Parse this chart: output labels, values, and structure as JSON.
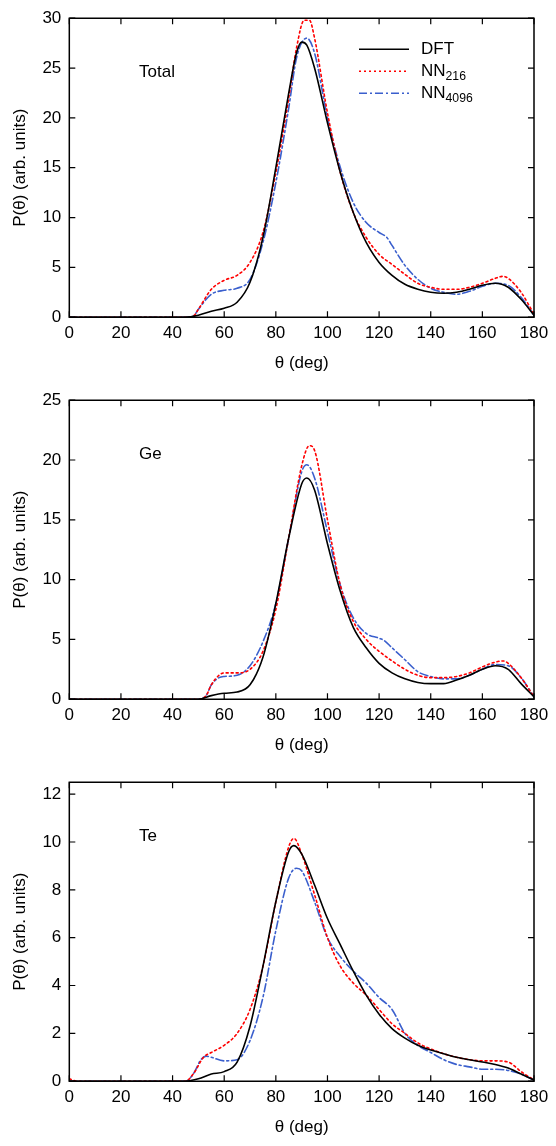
{
  "chart_data": [
    {
      "type": "line",
      "xlabel": "θ (deg)",
      "ylabel": "P(θ) (arb. units)",
      "annotations": [
        "Total"
      ],
      "xlim": [
        0,
        180
      ],
      "xticks": [
        0,
        20,
        40,
        60,
        80,
        100,
        120,
        140,
        160,
        180
      ],
      "ylim": [
        0,
        30
      ],
      "yticks": [
        0,
        5,
        10,
        15,
        20,
        25,
        30
      ],
      "grid": false,
      "legend": "top right",
      "marker": "none",
      "series": [
        {
          "name": "DFT",
          "color": "#000000",
          "line_style": "solid",
          "x": [
            0,
            45,
            50,
            55,
            60,
            65,
            70,
            75,
            80,
            85,
            88,
            90,
            92,
            95,
            100,
            105,
            110,
            115,
            120,
            125,
            130,
            135,
            140,
            145,
            150,
            155,
            160,
            165,
            170,
            175,
            180
          ],
          "values": [
            0,
            0,
            0.2,
            0.6,
            0.9,
            1.5,
            3.5,
            8,
            15,
            22.5,
            26.5,
            27.6,
            27.3,
            25,
            19.5,
            14.5,
            10.5,
            7.5,
            5.5,
            4.2,
            3.3,
            2.8,
            2.5,
            2.4,
            2.5,
            2.8,
            3.2,
            3.4,
            3,
            1.8,
            0.2
          ]
        },
        {
          "name": "NN$_{216}$",
          "color": "#ff0000",
          "line_style": "dotted",
          "x": [
            0,
            45,
            48,
            50,
            55,
            60,
            65,
            70,
            75,
            80,
            85,
            88,
            91,
            93,
            95,
            100,
            105,
            110,
            115,
            120,
            125,
            130,
            135,
            140,
            145,
            150,
            155,
            160,
            165,
            168,
            170,
            175,
            180
          ],
          "values": [
            0,
            0,
            0.1,
            0.8,
            2.8,
            3.7,
            4.2,
            5.5,
            8.5,
            14.5,
            22,
            27,
            29.8,
            29.8,
            28,
            20.5,
            14.5,
            10.5,
            8,
            6.3,
            5.3,
            4.3,
            3.4,
            3,
            2.8,
            2.8,
            3,
            3.4,
            3.9,
            4.1,
            3.9,
            2.5,
            0.3
          ]
        },
        {
          "name": "NN$_{4096}$",
          "color": "#3a5fcd",
          "line_style": "dashed",
          "x": [
            0,
            45,
            48,
            50,
            55,
            60,
            65,
            70,
            75,
            80,
            85,
            88,
            92,
            95,
            100,
            105,
            110,
            115,
            120,
            123,
            125,
            130,
            135,
            140,
            145,
            150,
            155,
            160,
            165,
            170,
            175,
            180
          ],
          "values": [
            0,
            0,
            0.1,
            0.8,
            2.3,
            2.7,
            2.9,
            3.8,
            7.5,
            13.5,
            21,
            26,
            28,
            26.5,
            20,
            15,
            11.5,
            9.5,
            8.5,
            8,
            7.2,
            5.2,
            3.8,
            2.9,
            2.5,
            2.3,
            2.6,
            3.1,
            3.4,
            3.2,
            2,
            0.2
          ]
        }
      ]
    },
    {
      "type": "line",
      "xlabel": "θ (deg)",
      "ylabel": "P(θ) (arb. units)",
      "annotations": [
        "Ge"
      ],
      "xlim": [
        0,
        180
      ],
      "xticks": [
        0,
        20,
        40,
        60,
        80,
        100,
        120,
        140,
        160,
        180
      ],
      "ylim": [
        0,
        25
      ],
      "yticks": [
        0,
        5,
        10,
        15,
        20,
        25
      ],
      "grid": false,
      "legend": false,
      "marker": "none",
      "series": [
        {
          "color": "#000000",
          "line_style": "solid",
          "x": [
            0,
            50,
            55,
            60,
            65,
            70,
            75,
            80,
            85,
            90,
            92,
            95,
            100,
            105,
            110,
            115,
            120,
            125,
            130,
            135,
            140,
            145,
            150,
            155,
            160,
            165,
            170,
            175,
            180
          ],
          "values": [
            0,
            0,
            0.3,
            0.5,
            0.6,
            1.2,
            3.5,
            8,
            13.5,
            18,
            18.5,
            17.5,
            13,
            9,
            6,
            4.3,
            3,
            2.2,
            1.7,
            1.4,
            1.3,
            1.3,
            1.6,
            2,
            2.5,
            2.8,
            2.5,
            1.3,
            0.2
          ]
        },
        {
          "color": "#ff0000",
          "line_style": "dotted",
          "x": [
            0,
            50,
            53,
            55,
            58,
            60,
            65,
            70,
            75,
            80,
            85,
            90,
            93,
            95,
            100,
            105,
            110,
            115,
            120,
            125,
            130,
            135,
            140,
            145,
            150,
            155,
            160,
            165,
            168,
            170,
            175,
            180
          ],
          "values": [
            0,
            0,
            0.3,
            1.2,
            2,
            2.2,
            2.2,
            2.5,
            4,
            7.5,
            13.5,
            19.5,
            21.2,
            20.8,
            15,
            9.5,
            6.5,
            5,
            4,
            3.2,
            2.5,
            2,
            1.8,
            1.8,
            1.9,
            2.2,
            2.7,
            3.1,
            3.2,
            3,
            1.8,
            0.2
          ]
        },
        {
          "color": "#3a5fcd",
          "line_style": "dashed",
          "x": [
            0,
            50,
            53,
            55,
            58,
            60,
            65,
            70,
            75,
            80,
            85,
            90,
            92,
            95,
            100,
            105,
            110,
            115,
            120,
            122,
            125,
            130,
            135,
            140,
            145,
            150,
            155,
            160,
            165,
            170,
            175,
            180
          ],
          "values": [
            0,
            0,
            0.3,
            1.2,
            1.8,
            1.9,
            2,
            2.8,
            4.8,
            8,
            13.5,
            19,
            19.6,
            18.5,
            14,
            9.5,
            6.8,
            5.5,
            5.1,
            4.9,
            4.3,
            3.3,
            2.3,
            1.9,
            1.7,
            1.7,
            2,
            2.5,
            2.9,
            2.8,
            1.8,
            0.2
          ]
        }
      ]
    },
    {
      "type": "line",
      "xlabel": "θ (deg)",
      "ylabel": "P(θ) (arb. units)",
      "annotations": [
        "Te"
      ],
      "xlim": [
        0,
        180
      ],
      "xticks": [
        0,
        20,
        40,
        60,
        80,
        100,
        120,
        140,
        160,
        180
      ],
      "ylim": [
        0,
        12.5
      ],
      "yticks": [
        0,
        2,
        4,
        6,
        8,
        10,
        12
      ],
      "grid": false,
      "legend": false,
      "marker": "none",
      "series": [
        {
          "color": "#000000",
          "line_style": "solid",
          "x": [
            0,
            45,
            50,
            55,
            60,
            65,
            70,
            75,
            80,
            85,
            87,
            90,
            95,
            100,
            105,
            110,
            115,
            120,
            125,
            130,
            135,
            140,
            145,
            150,
            155,
            160,
            165,
            170,
            175,
            180
          ],
          "values": [
            0,
            0,
            0.1,
            0.3,
            0.4,
            0.8,
            2.3,
            4.8,
            7.5,
            9.6,
            9.85,
            9.5,
            8.2,
            6.8,
            5.7,
            4.6,
            3.6,
            2.8,
            2.2,
            1.8,
            1.5,
            1.3,
            1.15,
            1,
            0.9,
            0.8,
            0.7,
            0.55,
            0.3,
            0.05
          ]
        },
        {
          "color": "#ff0000",
          "line_style": "dotted",
          "x": [
            0,
            3,
            45,
            48,
            52,
            55,
            60,
            65,
            70,
            75,
            80,
            85,
            87,
            90,
            95,
            100,
            105,
            110,
            115,
            120,
            125,
            130,
            135,
            140,
            145,
            150,
            155,
            160,
            165,
            170,
            175,
            180
          ],
          "values": [
            0.1,
            0,
            0,
            0.3,
            1,
            1.2,
            1.5,
            2,
            3,
            4.8,
            7.5,
            9.8,
            10.15,
            9.5,
            7.8,
            6,
            4.8,
            4.1,
            3.6,
            3,
            2.4,
            2,
            1.6,
            1.35,
            1.15,
            1,
            0.9,
            0.85,
            0.85,
            0.8,
            0.4,
            0.05
          ]
        },
        {
          "color": "#3a5fcd",
          "line_style": "dashed",
          "x": [
            0,
            45,
            48,
            51,
            53,
            55,
            60,
            65,
            70,
            75,
            80,
            85,
            88,
            90,
            95,
            100,
            105,
            110,
            115,
            120,
            125,
            130,
            135,
            140,
            145,
            150,
            155,
            160,
            165,
            170,
            175,
            180
          ],
          "values": [
            0,
            0,
            0.3,
            0.9,
            1.05,
            1,
            0.85,
            0.9,
            1.7,
            3.5,
            6.3,
            8.5,
            8.9,
            8.8,
            7.5,
            6,
            5.2,
            4.6,
            4.1,
            3.5,
            3,
            2,
            1.5,
            1.2,
            0.9,
            0.7,
            0.6,
            0.5,
            0.5,
            0.45,
            0.3,
            0.05
          ]
        }
      ]
    }
  ]
}
